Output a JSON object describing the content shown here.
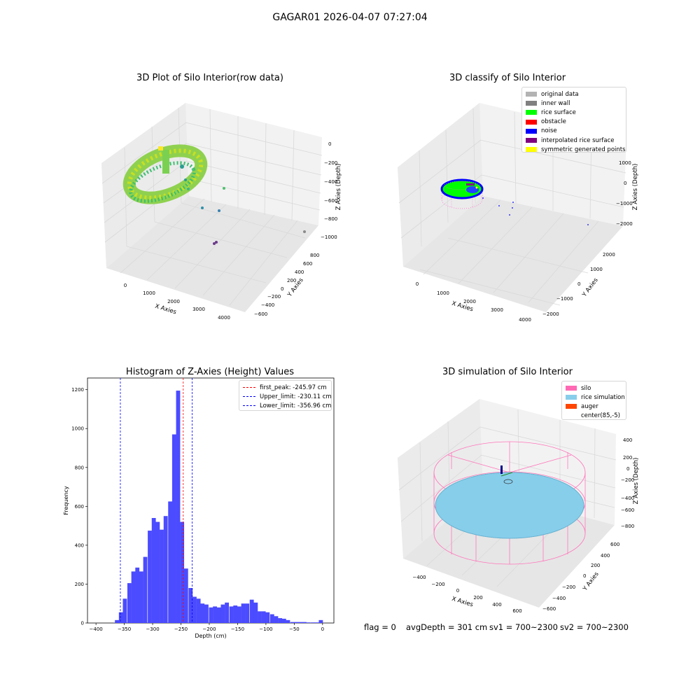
{
  "figure": {
    "title": "GAGAR01 2026-04-07 07:27:04",
    "status": {
      "flag": "flag = 0",
      "avg_depth": "avgDepth = 301 cm",
      "sv1": "sv1 = 700~2300",
      "sv2": "sv2 = 700~2300"
    }
  },
  "chart_data": [
    {
      "type": "scatter",
      "projection": "3d",
      "title": "3D Plot of Silo Interior(row data)",
      "xlabel": "X Axies",
      "ylabel": "Y Axies",
      "zlabel": "Z Axies (Depth)",
      "x_ticks": [
        "0",
        "1000",
        "2000",
        "3000",
        "4000"
      ],
      "y_ticks": [
        "800",
        "600",
        "400",
        "200",
        "0",
        "−200",
        "−400",
        "−600"
      ],
      "z_ticks": [
        "0",
        "−200",
        "−400",
        "−600",
        "−800",
        "−1000"
      ],
      "colormap": "viridis",
      "series": [
        {
          "description_hidden": true,
          "values": [
            {
              "x": 0,
              "y": 0,
              "z": -230
            },
            {
              "x": 700,
              "y": 0,
              "z": -250
            },
            {
              "x": 2500,
              "y": 250,
              "z": -410
            },
            {
              "x": 2800,
              "y": 300,
              "z": -470
            },
            {
              "x": 2300,
              "y": 200,
              "z": -450
            },
            {
              "x": 4100,
              "y": 0,
              "z": -870
            },
            {
              "x": 3000,
              "y": 0,
              "z": -900
            }
          ]
        }
      ]
    },
    {
      "type": "scatter",
      "projection": "3d",
      "title": "3D classify of Silo Interior",
      "xlabel": "X Axies",
      "ylabel": "Y Axies",
      "zlabel": "Z Axies (Depth)",
      "x_ticks": [
        "0",
        "1000",
        "2000",
        "3000",
        "4000"
      ],
      "y_ticks": [
        "2000",
        "1000",
        "0",
        "−1000",
        "−2000"
      ],
      "z_ticks": [
        "1000",
        "0",
        "−1000",
        "−2000"
      ],
      "legend": {
        "position": "top-right",
        "entries": [
          {
            "label": "original data",
            "color": "#b3b3b3"
          },
          {
            "label": "inner wall",
            "color": "#808080"
          },
          {
            "label": "rice surface",
            "color": "#00ff00"
          },
          {
            "label": "obstacle",
            "color": "#ff0000"
          },
          {
            "label": "noise",
            "color": "#0000ff"
          },
          {
            "label": "interpolated rice surface",
            "color": "#800080"
          },
          {
            "label": "symmetric generated points",
            "color": "#ffff00"
          }
        ]
      }
    },
    {
      "type": "bar",
      "title": "Histogram of Z-Axies (Height) Values",
      "xlabel": "Depth (cm)",
      "ylabel": "Frequency",
      "x_ticks": [
        "−400",
        "−350",
        "−300",
        "−250",
        "−200",
        "−150",
        "−100",
        "−50",
        "0"
      ],
      "y_ticks": [
        "0",
        "200",
        "400",
        "600",
        "800",
        "1000",
        "1200"
      ],
      "xlim": [
        -415,
        20
      ],
      "ylim": [
        0,
        1260
      ],
      "bar_color": "#4b4bff",
      "bin_width": 7.2,
      "bins": [
        {
          "x": -363,
          "value": 15
        },
        {
          "x": -356,
          "value": 55
        },
        {
          "x": -349,
          "value": 125
        },
        {
          "x": -341,
          "value": 205
        },
        {
          "x": -334,
          "value": 265
        },
        {
          "x": -327,
          "value": 285
        },
        {
          "x": -320,
          "value": 265
        },
        {
          "x": -313,
          "value": 340
        },
        {
          "x": -305,
          "value": 475
        },
        {
          "x": -298,
          "value": 540
        },
        {
          "x": -291,
          "value": 520
        },
        {
          "x": -284,
          "value": 480
        },
        {
          "x": -277,
          "value": 550
        },
        {
          "x": -269,
          "value": 625
        },
        {
          "x": -262,
          "value": 970
        },
        {
          "x": -255,
          "value": 1195
        },
        {
          "x": -248,
          "value": 520
        },
        {
          "x": -241,
          "value": 280
        },
        {
          "x": -233,
          "value": 180
        },
        {
          "x": -226,
          "value": 135
        },
        {
          "x": -219,
          "value": 125
        },
        {
          "x": -212,
          "value": 100
        },
        {
          "x": -205,
          "value": 95
        },
        {
          "x": -197,
          "value": 80
        },
        {
          "x": -190,
          "value": 85
        },
        {
          "x": -183,
          "value": 80
        },
        {
          "x": -176,
          "value": 95
        },
        {
          "x": -169,
          "value": 105
        },
        {
          "x": -161,
          "value": 85
        },
        {
          "x": -154,
          "value": 90
        },
        {
          "x": -147,
          "value": 85
        },
        {
          "x": -140,
          "value": 100
        },
        {
          "x": -133,
          "value": 100
        },
        {
          "x": -125,
          "value": 120
        },
        {
          "x": -118,
          "value": 105
        },
        {
          "x": -111,
          "value": 60
        },
        {
          "x": -104,
          "value": 60
        },
        {
          "x": -97,
          "value": 55
        },
        {
          "x": -89,
          "value": 45
        },
        {
          "x": -82,
          "value": 35
        },
        {
          "x": -75,
          "value": 25
        },
        {
          "x": -68,
          "value": 22
        },
        {
          "x": -61,
          "value": 15
        },
        {
          "x": -53,
          "value": 5
        },
        {
          "x": -46,
          "value": 5
        },
        {
          "x": -39,
          "value": 5
        },
        {
          "x": -32,
          "value": 5
        },
        {
          "x": -25,
          "value": 3
        },
        {
          "x": -17,
          "value": 3
        },
        {
          "x": -10,
          "value": 3
        },
        {
          "x": -3,
          "value": 15
        }
      ],
      "lines": [
        {
          "label": "first_peak: -245.97 cm",
          "x": -245.97,
          "color": "#ff0000"
        },
        {
          "label": "Upper_limit: -230.11 cm",
          "x": -230.11,
          "color": "#0000ff"
        },
        {
          "label": "Lower_limit: -356.96 cm",
          "x": -356.96,
          "color": "#0000ff"
        }
      ],
      "legend": {
        "position": "top-right"
      }
    },
    {
      "type": "scatter",
      "projection": "3d",
      "title": "3D simulation of Silo Interior",
      "xlabel": "X Axies",
      "ylabel": "Y Axies",
      "zlabel": "Z Axies (Depth)",
      "x_ticks": [
        "−400",
        "−200",
        "0",
        "200",
        "400",
        "600"
      ],
      "y_ticks": [
        "600",
        "400",
        "200",
        "0",
        "−200",
        "−400",
        "−600"
      ],
      "z_ticks": [
        "400",
        "200",
        "0",
        "−200",
        "−400",
        "−600",
        "−800"
      ],
      "legend": {
        "position": "top-right",
        "entries": [
          {
            "label": "silo",
            "color": "#ff69b4"
          },
          {
            "label": "rice simulation",
            "color": "#87ceeb"
          },
          {
            "label": "auger",
            "color": "#ff4500"
          },
          {
            "label": "center(85,-5)",
            "color": null
          }
        ]
      }
    }
  ]
}
